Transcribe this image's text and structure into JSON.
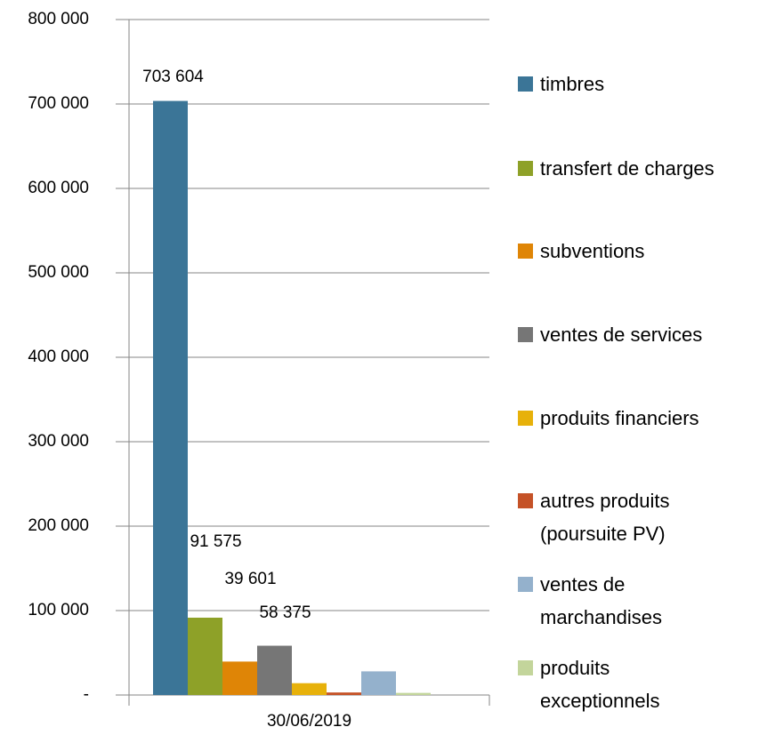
{
  "chart_data": {
    "type": "bar",
    "categories": [
      "30/06/2019"
    ],
    "series": [
      {
        "name": "timbres",
        "color": "#3b7597",
        "values": [
          703604
        ],
        "value_labels": [
          "703 604"
        ]
      },
      {
        "name": "transfert de charges",
        "color": "#8ea128",
        "values": [
          91575
        ],
        "value_labels": [
          "91 575"
        ]
      },
      {
        "name": "subventions",
        "color": "#df8506",
        "values": [
          39601
        ],
        "value_labels": [
          "39 601"
        ]
      },
      {
        "name": "ventes de services",
        "color": "#767676",
        "values": [
          58375
        ],
        "value_labels": [
          "58 375"
        ]
      },
      {
        "name": "produits financiers",
        "color": "#e7b10a",
        "values": [
          14000
        ]
      },
      {
        "name": "autres produits (poursuite PV)",
        "color": "#c55227",
        "values": [
          3000
        ]
      },
      {
        "name": "ventes de marchandises",
        "color": "#94b1cc",
        "values": [
          28000
        ]
      },
      {
        "name": "produits exceptionnels",
        "color": "#c3d59b",
        "values": [
          2500
        ]
      }
    ],
    "ylim": [
      0,
      800000
    ],
    "yticks": [
      {
        "value": 0,
        "label": "-"
      },
      {
        "value": 100000,
        "label": "100 000"
      },
      {
        "value": 200000,
        "label": "200 000"
      },
      {
        "value": 300000,
        "label": "300 000"
      },
      {
        "value": 400000,
        "label": "400 000"
      },
      {
        "value": 500000,
        "label": "500 000"
      },
      {
        "value": 600000,
        "label": "600 000"
      },
      {
        "value": 700000,
        "label": "700 000"
      },
      {
        "value": 800000,
        "label": "800 000"
      }
    ],
    "grid": true
  }
}
